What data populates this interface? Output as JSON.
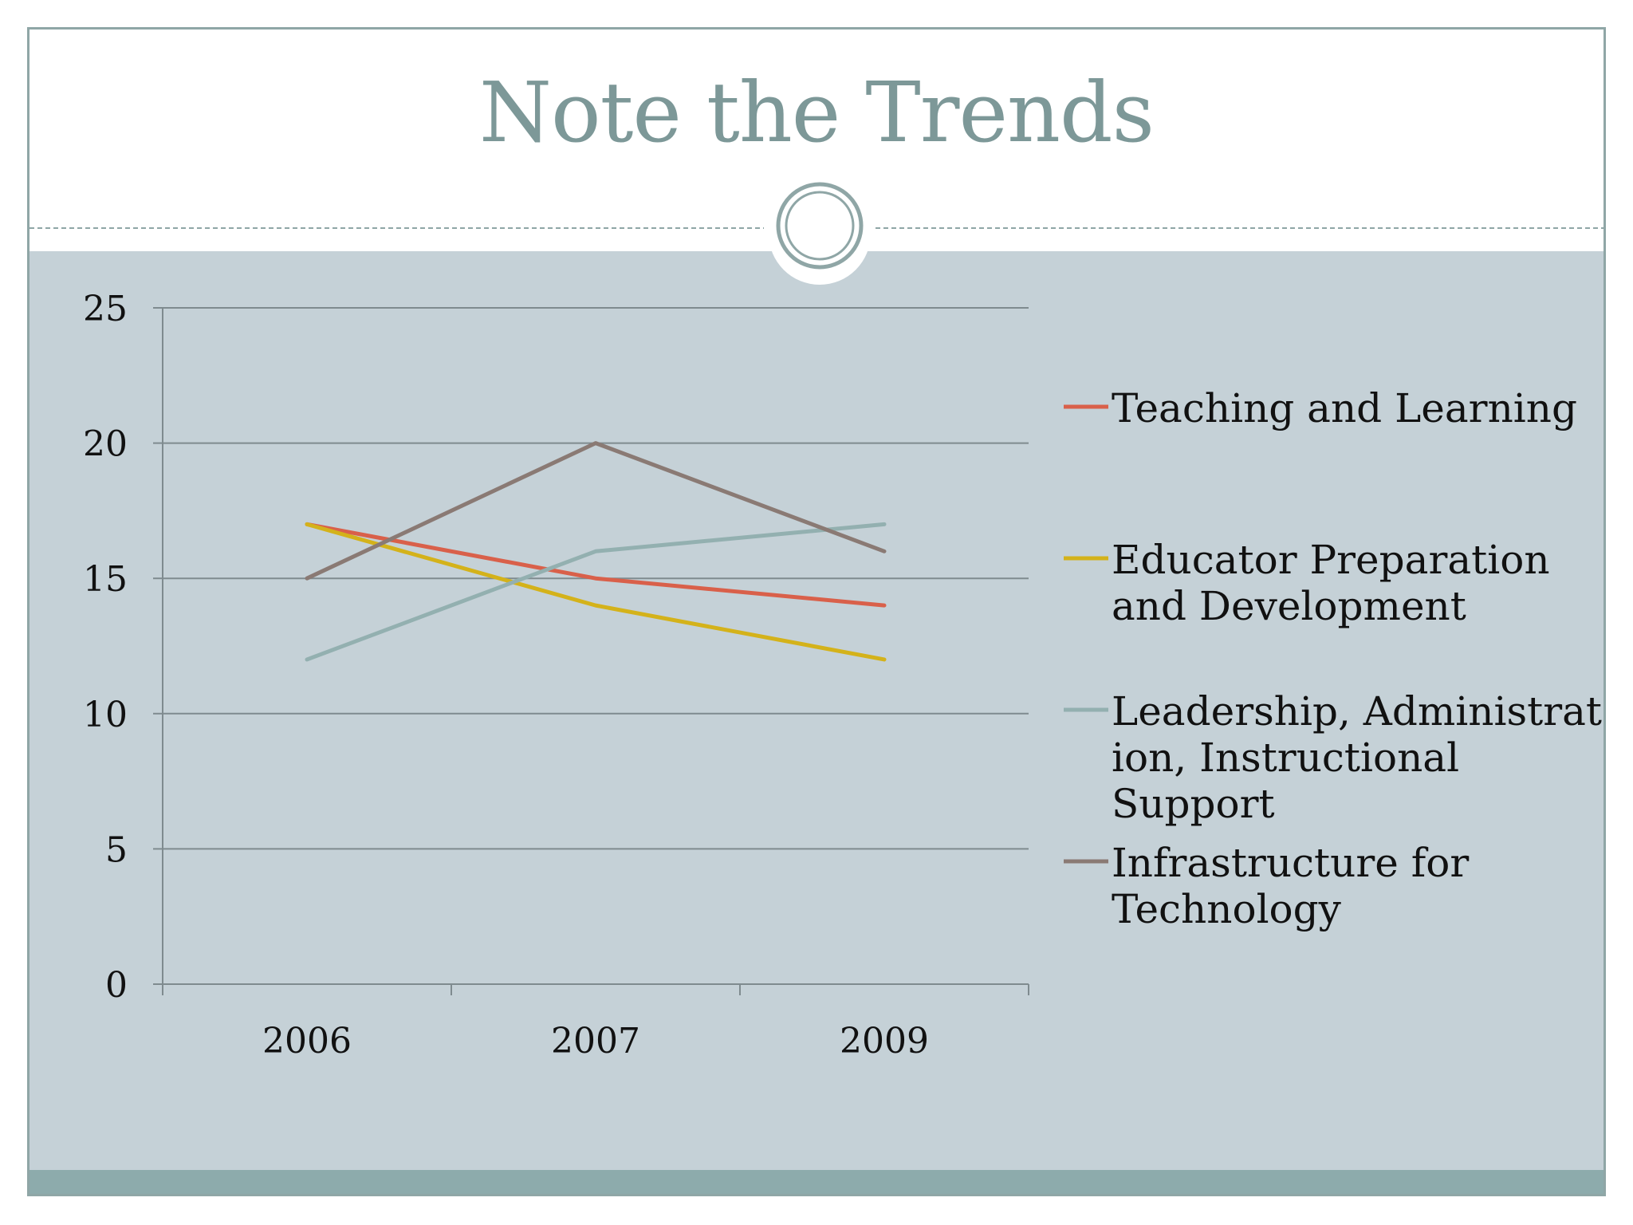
{
  "slide": {
    "title": "Note the Trends"
  },
  "colors": {
    "frame": "#8fa6a6",
    "panel": "#c5d1d7",
    "footer": "#8dabac",
    "title": "#7d9898",
    "gridline": "#7f8b8f"
  },
  "chart_data": {
    "type": "line",
    "categories": [
      "2006",
      "2007",
      "2009"
    ],
    "ylim": [
      0,
      25
    ],
    "yticks": [
      0,
      5,
      10,
      15,
      20,
      25
    ],
    "grid": true,
    "legend_position": "right",
    "series": [
      {
        "name": "Teaching and Learning",
        "color": "#d9604a",
        "values": [
          17,
          15,
          14
        ]
      },
      {
        "name": "Educator Preparation and Development",
        "color": "#d4b21a",
        "values": [
          17,
          14,
          12
        ]
      },
      {
        "name": "Leadership, Administration, Instructional Support",
        "color": "#93b0b0",
        "values": [
          12,
          16,
          17
        ]
      },
      {
        "name": "Infrastructure for Technology",
        "color": "#8a7a74",
        "values": [
          15,
          20,
          16
        ]
      }
    ],
    "legend_text": [
      [
        "Teaching and Learning"
      ],
      [
        "Educator Preparation",
        "and Development"
      ],
      [
        "Leadership, Administrat",
        "ion, Instructional",
        "Support"
      ],
      [
        "Infrastructure for",
        "Technology"
      ]
    ]
  }
}
